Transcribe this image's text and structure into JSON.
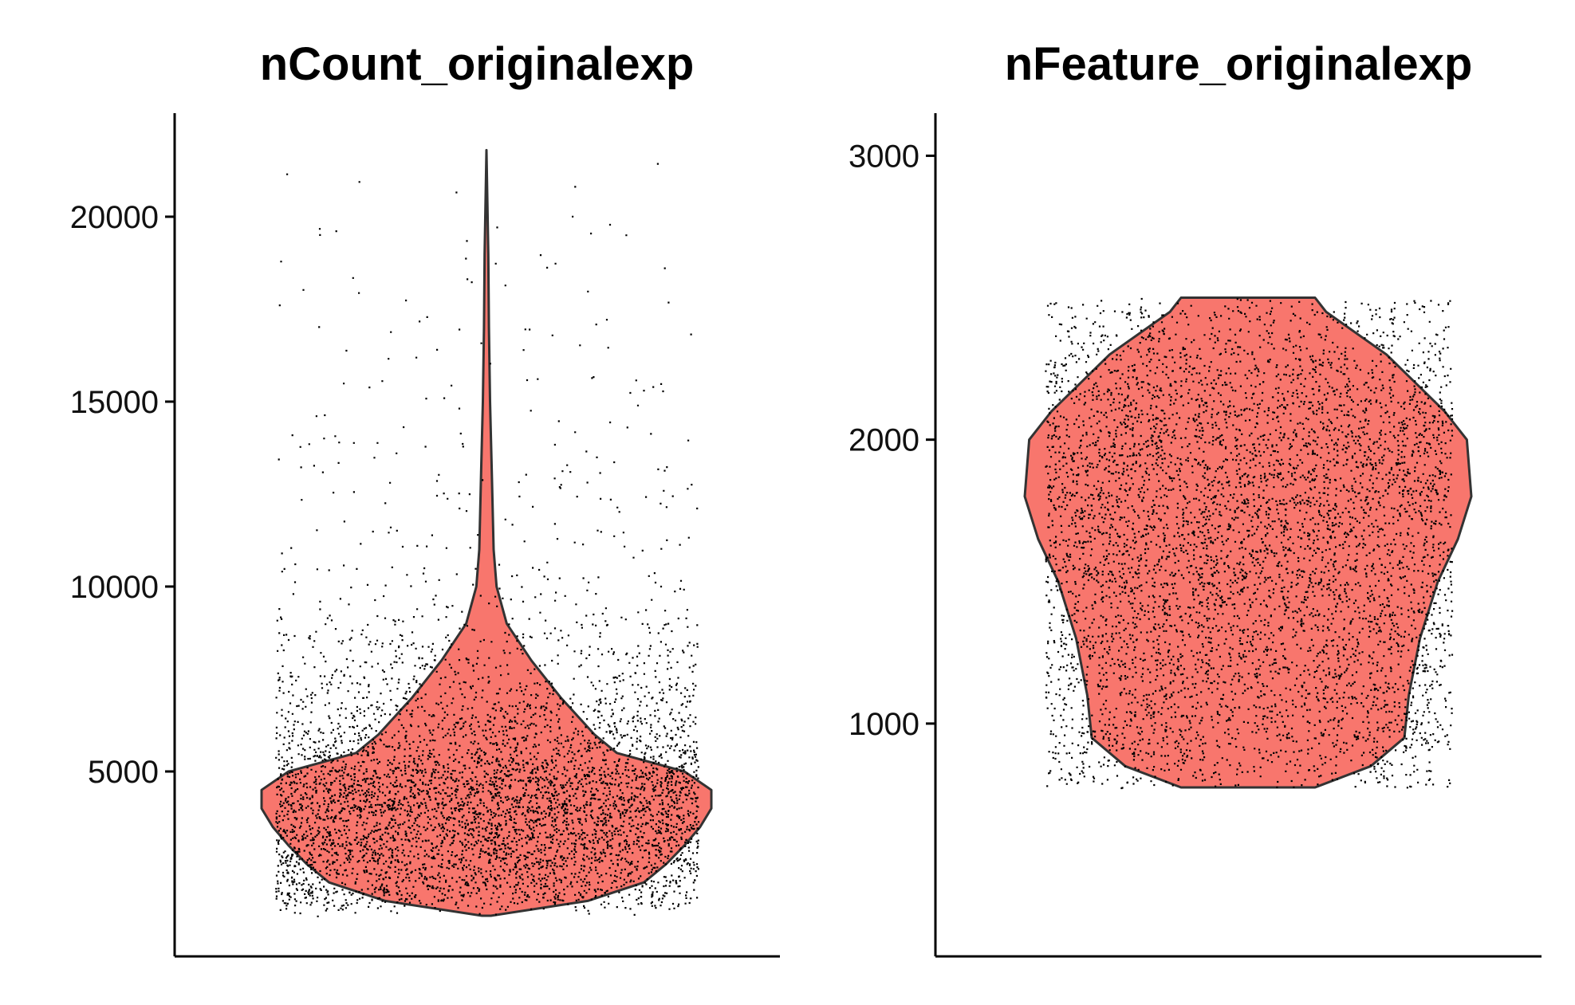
{
  "chart_data": [
    {
      "type": "violin",
      "title": "nCount_originalexp",
      "xlabel": "",
      "ylabel": "",
      "ylim": [
        0,
        22800
      ],
      "y_ticks": [
        5000,
        10000,
        15000,
        20000
      ],
      "y_tick_labels": [
        "5000",
        "10000",
        "15000",
        "20000"
      ],
      "fill_color": "#F8766D",
      "point_color": "#000000",
      "points_shown": true,
      "grid": false,
      "legend": "none",
      "density_profile": [
        {
          "y": 1100,
          "w": 0.02
        },
        {
          "y": 1500,
          "w": 0.45
        },
        {
          "y": 2000,
          "w": 0.7
        },
        {
          "y": 2500,
          "w": 0.8
        },
        {
          "y": 3000,
          "w": 0.88
        },
        {
          "y": 3500,
          "w": 0.95
        },
        {
          "y": 4000,
          "w": 1.0
        },
        {
          "y": 4500,
          "w": 1.0
        },
        {
          "y": 5000,
          "w": 0.88
        },
        {
          "y": 5500,
          "w": 0.58
        },
        {
          "y": 6000,
          "w": 0.48
        },
        {
          "y": 7000,
          "w": 0.33
        },
        {
          "y": 8000,
          "w": 0.2
        },
        {
          "y": 9000,
          "w": 0.09
        },
        {
          "y": 10000,
          "w": 0.045
        },
        {
          "y": 11000,
          "w": 0.032
        },
        {
          "y": 13000,
          "w": 0.024
        },
        {
          "y": 15000,
          "w": 0.016
        },
        {
          "y": 17000,
          "w": 0.011
        },
        {
          "y": 19000,
          "w": 0.008
        },
        {
          "y": 21800,
          "w": 0.0
        }
      ]
    },
    {
      "type": "violin",
      "title": "nFeature_originalexp",
      "xlabel": "",
      "ylabel": "",
      "ylim": [
        180,
        3150
      ],
      "y_ticks": [
        1000,
        2000,
        3000
      ],
      "y_tick_labels": [
        "1000",
        "2000",
        "3000"
      ],
      "fill_color": "#F8766D",
      "point_color": "#000000",
      "points_shown": true,
      "grid": false,
      "legend": "none",
      "density_profile": [
        {
          "y": 775,
          "w": 0.3
        },
        {
          "y": 850,
          "w": 0.55
        },
        {
          "y": 950,
          "w": 0.7
        },
        {
          "y": 1100,
          "w": 0.72
        },
        {
          "y": 1300,
          "w": 0.77
        },
        {
          "y": 1500,
          "w": 0.85
        },
        {
          "y": 1650,
          "w": 0.94
        },
        {
          "y": 1800,
          "w": 1.0
        },
        {
          "y": 2000,
          "w": 0.98
        },
        {
          "y": 2100,
          "w": 0.88
        },
        {
          "y": 2300,
          "w": 0.62
        },
        {
          "y": 2450,
          "w": 0.35
        },
        {
          "y": 2500,
          "w": 0.3
        }
      ]
    }
  ]
}
